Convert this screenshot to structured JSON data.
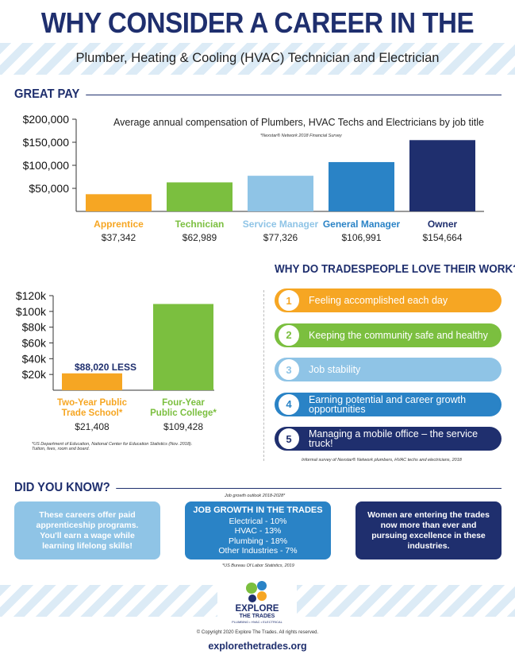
{
  "header": {
    "title": "WHY CONSIDER A CAREER IN THE TRADES?",
    "subtitle": "Plumber, Heating & Cooling (HVAC) Technician and Electrician"
  },
  "great_pay": {
    "heading": "GREAT PAY",
    "chart_title": "Average annual compensation of Plumbers, HVAC Techs and Electricians by job title",
    "chart_source": "*Nexstar® Network 2018 Financial Survey"
  },
  "education": {
    "less_label": "$88,020 LESS",
    "footnote_line1": "*US Department of Education, National Center for Education Statistics (Nov. 2018).",
    "footnote_line2": "Tuition, fees, room and board."
  },
  "why_love": {
    "heading": "WHY DO TRADESPEOPLE LOVE THEIR WORK?",
    "items": [
      {
        "num": "1",
        "text": "Feeling accomplished each day",
        "color": "#f6a623"
      },
      {
        "num": "2",
        "text": "Keeping the community safe and healthy",
        "color": "#7bbf3f"
      },
      {
        "num": "3",
        "text": "Job stability",
        "color": "#8fc4e6"
      },
      {
        "num": "4",
        "text": "Earning potential and career growth opportunities",
        "color": "#2a83c6"
      },
      {
        "num": "5",
        "text": "Managing a mobile office – the service truck!",
        "color": "#1f2f6e"
      }
    ],
    "footnote": "Informal survey of Nexstar® Network plumbers, HVAC techs and electricians, 2018"
  },
  "did_you_know": {
    "heading": "DID YOU KNOW?",
    "box1_text": "These careers offer paid apprenticeship programs. You'll earn a wage while learning lifelong skills!",
    "growth_note": "Job growth outlook 2018-2028*",
    "box2_title": "JOB GROWTH IN THE TRADES",
    "box2_lines": [
      "Electrical - 10%",
      "HVAC - 13%",
      "Plumbing - 18%",
      "Other Industries - 7%"
    ],
    "box2_source": "*US Bureau Of Labor Statistics, 2019",
    "box3_text": "Women are entering the trades now more than ever and pursuing excellence in these industries."
  },
  "footer": {
    "logo_line1": "EXPLORE",
    "logo_line2": "THE TRADES",
    "logo_tagline": "PLUMBING • HVAC • ELECTRICAL",
    "copyright": "© Copyright 2020 Explore The Trades.  All rights reserved.",
    "url": "explorethetrades.org"
  },
  "colors": {
    "navy": "#1f2f6e",
    "orange": "#f6a623",
    "green": "#7bbf3f",
    "light_blue": "#8fc4e6",
    "blue": "#2a83c6"
  },
  "chart_data": [
    {
      "type": "bar",
      "title": "Average annual compensation of Plumbers, HVAC Techs and Electricians by job title",
      "categories": [
        "Apprentice",
        "Technician",
        "Service Manager",
        "General Manager",
        "Owner"
      ],
      "values": [
        37342,
        62989,
        77326,
        106991,
        154664
      ],
      "value_labels": [
        "$37,342",
        "$62,989",
        "$77,326",
        "$106,991",
        "$154,664"
      ],
      "colors": [
        "#f6a623",
        "#7bbf3f",
        "#8fc4e6",
        "#2a83c6",
        "#1f2f6e"
      ],
      "yticks": [
        50000,
        100000,
        150000,
        200000
      ],
      "ytick_labels": [
        "$50,000",
        "$100,000",
        "$150,000",
        "$200,000"
      ],
      "ylim": [
        0,
        200000
      ],
      "grid": false
    },
    {
      "type": "bar",
      "categories": [
        "Two-Year Public Trade School*",
        "Four-Year Public College*"
      ],
      "category_lines": [
        [
          "Two-Year Public",
          "Trade School*"
        ],
        [
          "Four-Year",
          "Public College*"
        ]
      ],
      "values": [
        21408,
        109428
      ],
      "value_labels": [
        "$21,408",
        "$109,428"
      ],
      "colors": [
        "#f6a623",
        "#7bbf3f"
      ],
      "yticks": [
        20000,
        40000,
        60000,
        80000,
        100000,
        120000
      ],
      "ytick_labels": [
        "$20k",
        "$40k",
        "$60k",
        "$80k",
        "$100k",
        "$120k"
      ],
      "ylim": [
        0,
        120000
      ],
      "grid": false
    }
  ]
}
